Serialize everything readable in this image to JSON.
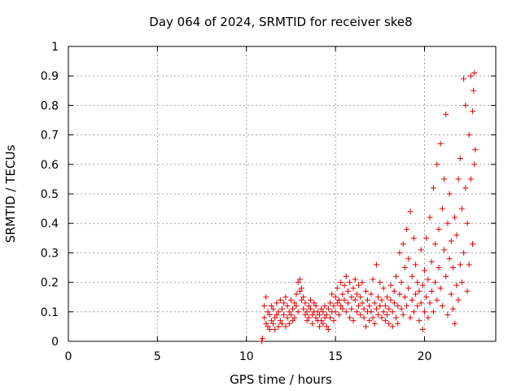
{
  "chart_data": {
    "type": "scatter",
    "title": "Day 064 of 2024, SRMTID for receiver ske8",
    "xlabel": "GPS time / hours",
    "ylabel": "SRMTID / TECUs",
    "xlim": [
      0,
      24
    ],
    "ylim": [
      0,
      1
    ],
    "xticks": [
      0,
      5,
      10,
      15,
      20
    ],
    "yticks": [
      0,
      0.1,
      0.2,
      0.3,
      0.4,
      0.5,
      0.6,
      0.7,
      0.8,
      0.9,
      1
    ],
    "ytick_labels": [
      "0",
      "0.1",
      "0.2",
      "0.3",
      "0.4",
      "0.5",
      "0.6",
      "0.7",
      "0.8",
      "0.9",
      "1"
    ],
    "grid": true,
    "marker": "+",
    "marker_color": "#e00000",
    "series": [
      {
        "name": "SRMTID",
        "points": [
          [
            10.85,
            0.0
          ],
          [
            10.9,
            0.01
          ],
          [
            11.0,
            0.12
          ],
          [
            11.0,
            0.08
          ],
          [
            11.1,
            0.06
          ],
          [
            11.1,
            0.15
          ],
          [
            11.2,
            0.05
          ],
          [
            11.2,
            0.1
          ],
          [
            11.3,
            0.04
          ],
          [
            11.3,
            0.09
          ],
          [
            11.4,
            0.07
          ],
          [
            11.4,
            0.12
          ],
          [
            11.5,
            0.06
          ],
          [
            11.5,
            0.11
          ],
          [
            11.6,
            0.08
          ],
          [
            11.6,
            0.04
          ],
          [
            11.7,
            0.13
          ],
          [
            11.7,
            0.09
          ],
          [
            11.8,
            0.05
          ],
          [
            11.8,
            0.1
          ],
          [
            11.9,
            0.14
          ],
          [
            11.9,
            0.07
          ],
          [
            12.0,
            0.06
          ],
          [
            12.0,
            0.11
          ],
          [
            12.1,
            0.09
          ],
          [
            12.1,
            0.13
          ],
          [
            12.2,
            0.05
          ],
          [
            12.2,
            0.15
          ],
          [
            12.3,
            0.08
          ],
          [
            12.3,
            0.12
          ],
          [
            12.4,
            0.1
          ],
          [
            12.4,
            0.06
          ],
          [
            12.5,
            0.09
          ],
          [
            12.5,
            0.14
          ],
          [
            12.6,
            0.07
          ],
          [
            12.6,
            0.11
          ],
          [
            12.7,
            0.13
          ],
          [
            12.7,
            0.08
          ],
          [
            12.8,
            0.12
          ],
          [
            12.8,
            0.16
          ],
          [
            12.9,
            0.1
          ],
          [
            12.9,
            0.2
          ],
          [
            13.0,
            0.21
          ],
          [
            13.0,
            0.17
          ],
          [
            13.1,
            0.14
          ],
          [
            13.1,
            0.18
          ],
          [
            13.2,
            0.11
          ],
          [
            13.2,
            0.15
          ],
          [
            13.3,
            0.09
          ],
          [
            13.3,
            0.13
          ],
          [
            13.4,
            0.1
          ],
          [
            13.4,
            0.07
          ],
          [
            13.5,
            0.12
          ],
          [
            13.5,
            0.08
          ],
          [
            13.6,
            0.11
          ],
          [
            13.6,
            0.14
          ],
          [
            13.7,
            0.09
          ],
          [
            13.7,
            0.06
          ],
          [
            13.8,
            0.1
          ],
          [
            13.8,
            0.13
          ],
          [
            13.9,
            0.08
          ],
          [
            13.9,
            0.12
          ],
          [
            14.0,
            0.07
          ],
          [
            14.0,
            0.1
          ],
          [
            14.1,
            0.09
          ],
          [
            14.1,
            0.05
          ],
          [
            14.2,
            0.11
          ],
          [
            14.2,
            0.07
          ],
          [
            14.3,
            0.1
          ],
          [
            14.3,
            0.06
          ],
          [
            14.4,
            0.08
          ],
          [
            14.4,
            0.12
          ],
          [
            14.5,
            0.05
          ],
          [
            14.5,
            0.09
          ],
          [
            14.6,
            0.04
          ],
          [
            14.6,
            0.11
          ],
          [
            14.7,
            0.08
          ],
          [
            14.7,
            0.13
          ],
          [
            14.8,
            0.1
          ],
          [
            14.8,
            0.16
          ],
          [
            14.9,
            0.12
          ],
          [
            14.9,
            0.07
          ],
          [
            15.0,
            0.15
          ],
          [
            15.0,
            0.1
          ],
          [
            15.1,
            0.18
          ],
          [
            15.1,
            0.13
          ],
          [
            15.2,
            0.09
          ],
          [
            15.2,
            0.14
          ],
          [
            15.3,
            0.12
          ],
          [
            15.3,
            0.2
          ],
          [
            15.4,
            0.16
          ],
          [
            15.4,
            0.11
          ],
          [
            15.5,
            0.19
          ],
          [
            15.5,
            0.14
          ],
          [
            15.6,
            0.22
          ],
          [
            15.6,
            0.1
          ],
          [
            15.7,
            0.17
          ],
          [
            15.7,
            0.13
          ],
          [
            15.8,
            0.2
          ],
          [
            15.8,
            0.08
          ],
          [
            15.9,
            0.15
          ],
          [
            15.9,
            0.11
          ],
          [
            16.0,
            0.18
          ],
          [
            16.0,
            0.07
          ],
          [
            16.1,
            0.14
          ],
          [
            16.1,
            0.21
          ],
          [
            16.2,
            0.1
          ],
          [
            16.2,
            0.16
          ],
          [
            16.3,
            0.12
          ],
          [
            16.3,
            0.19
          ],
          [
            16.4,
            0.09
          ],
          [
            16.4,
            0.15
          ],
          [
            16.5,
            0.13
          ],
          [
            16.5,
            0.2
          ],
          [
            16.6,
            0.08
          ],
          [
            16.6,
            0.11
          ],
          [
            16.7,
            0.17
          ],
          [
            16.7,
            0.05
          ],
          [
            16.8,
            0.1
          ],
          [
            16.8,
            0.14
          ],
          [
            16.9,
            0.07
          ],
          [
            16.9,
            0.12
          ],
          [
            17.0,
            0.1
          ],
          [
            17.0,
            0.16
          ],
          [
            17.1,
            0.08
          ],
          [
            17.1,
            0.21
          ],
          [
            17.2,
            0.13
          ],
          [
            17.2,
            0.06
          ],
          [
            17.3,
            0.11
          ],
          [
            17.3,
            0.26
          ],
          [
            17.4,
            0.15
          ],
          [
            17.4,
            0.09
          ],
          [
            17.5,
            0.12
          ],
          [
            17.5,
            0.2
          ],
          [
            17.6,
            0.08
          ],
          [
            17.6,
            0.14
          ],
          [
            17.7,
            0.1
          ],
          [
            17.7,
            0.18
          ],
          [
            17.8,
            0.07
          ],
          [
            17.8,
            0.12
          ],
          [
            17.9,
            0.09
          ],
          [
            17.9,
            0.15
          ],
          [
            18.0,
            0.11
          ],
          [
            18.0,
            0.06
          ],
          [
            18.1,
            0.14
          ],
          [
            18.1,
            0.19
          ],
          [
            18.2,
            0.1
          ],
          [
            18.2,
            0.05
          ],
          [
            18.3,
            0.13
          ],
          [
            18.3,
            0.17
          ],
          [
            18.4,
            0.08
          ],
          [
            18.4,
            0.22
          ],
          [
            18.5,
            0.12
          ],
          [
            18.5,
            0.06
          ],
          [
            18.6,
            0.16
          ],
          [
            18.6,
            0.3
          ],
          [
            18.7,
            0.11
          ],
          [
            18.7,
            0.2
          ],
          [
            18.8,
            0.33
          ],
          [
            18.8,
            0.09
          ],
          [
            18.9,
            0.15
          ],
          [
            18.9,
            0.25
          ],
          [
            19.0,
            0.38
          ],
          [
            19.0,
            0.12
          ],
          [
            19.1,
            0.18
          ],
          [
            19.1,
            0.28
          ],
          [
            19.2,
            0.44
          ],
          [
            19.2,
            0.08
          ],
          [
            19.3,
            0.14
          ],
          [
            19.3,
            0.22
          ],
          [
            19.4,
            0.35
          ],
          [
            19.4,
            0.1
          ],
          [
            19.5,
            0.16
          ],
          [
            19.5,
            0.26
          ],
          [
            19.6,
            0.12
          ],
          [
            19.6,
            0.2
          ],
          [
            19.7,
            0.07
          ],
          [
            19.7,
            0.17
          ],
          [
            19.8,
            0.31
          ],
          [
            19.8,
            0.13
          ],
          [
            19.9,
            0.04
          ],
          [
            19.9,
            0.19
          ],
          [
            20.0,
            0.1
          ],
          [
            20.0,
            0.24
          ],
          [
            20.1,
            0.15
          ],
          [
            20.1,
            0.35
          ],
          [
            20.2,
            0.08
          ],
          [
            20.2,
            0.21
          ],
          [
            20.3,
            0.42
          ],
          [
            20.3,
            0.13
          ],
          [
            20.4,
            0.27
          ],
          [
            20.4,
            0.17
          ],
          [
            20.5,
            0.52
          ],
          [
            20.5,
            0.1
          ],
          [
            20.6,
            0.33
          ],
          [
            20.6,
            0.2
          ],
          [
            20.7,
            0.6
          ],
          [
            20.7,
            0.14
          ],
          [
            20.8,
            0.38
          ],
          [
            20.8,
            0.25
          ],
          [
            20.9,
            0.67
          ],
          [
            20.9,
            0.18
          ],
          [
            21.0,
            0.45
          ],
          [
            21.0,
            0.12
          ],
          [
            21.1,
            0.31
          ],
          [
            21.1,
            0.55
          ],
          [
            21.2,
            0.77
          ],
          [
            21.2,
            0.22
          ],
          [
            21.3,
            0.4
          ],
          [
            21.3,
            0.09
          ],
          [
            21.4,
            0.28
          ],
          [
            21.4,
            0.5
          ],
          [
            21.5,
            0.16
          ],
          [
            21.5,
            0.34
          ],
          [
            21.6,
            0.11
          ],
          [
            21.6,
            0.25
          ],
          [
            21.7,
            0.42
          ],
          [
            21.7,
            0.06
          ],
          [
            21.8,
            0.19
          ],
          [
            21.8,
            0.36
          ],
          [
            21.9,
            0.55
          ],
          [
            21.9,
            0.14
          ],
          [
            22.0,
            0.26
          ],
          [
            22.0,
            0.62
          ],
          [
            22.1,
            0.2
          ],
          [
            22.1,
            0.45
          ],
          [
            22.2,
            0.89
          ],
          [
            22.2,
            0.3
          ],
          [
            22.3,
            0.52
          ],
          [
            22.3,
            0.8
          ],
          [
            22.4,
            0.17
          ],
          [
            22.4,
            0.4
          ],
          [
            22.5,
            0.7
          ],
          [
            22.5,
            0.26
          ],
          [
            22.6,
            0.55
          ],
          [
            22.6,
            0.9
          ],
          [
            22.7,
            0.33
          ],
          [
            22.7,
            0.78
          ],
          [
            22.75,
            0.85
          ],
          [
            22.8,
            0.6
          ],
          [
            22.8,
            0.91
          ],
          [
            22.85,
            0.65
          ]
        ]
      }
    ]
  }
}
